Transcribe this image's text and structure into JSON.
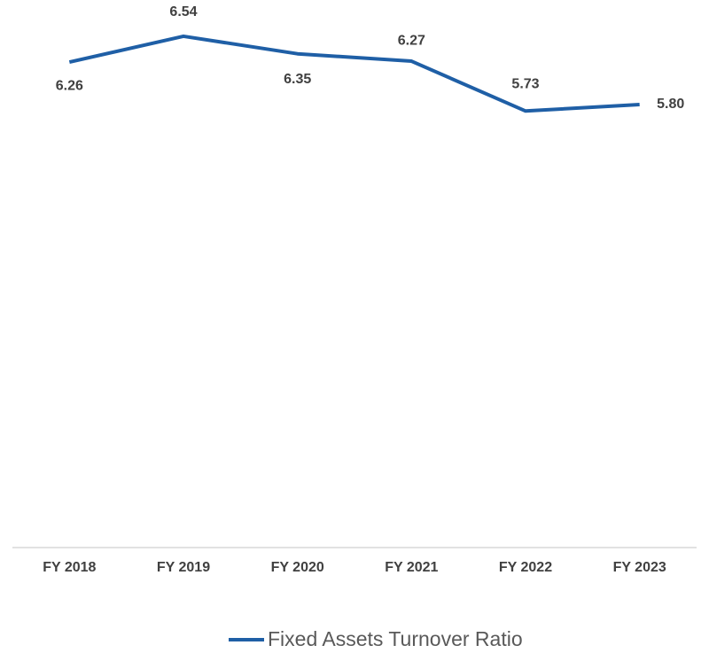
{
  "chart_data": {
    "type": "line",
    "categories": [
      "FY 2018",
      "FY 2019",
      "FY 2020",
      "FY 2021",
      "FY 2022",
      "FY 2023"
    ],
    "series": [
      {
        "name": "Fixed Assets Turnover Ratio",
        "color": "#1f5fa6",
        "values": [
          6.26,
          6.54,
          6.35,
          6.27,
          5.73,
          5.8
        ],
        "value_labels": [
          "6.26",
          "6.54",
          "6.35",
          "6.27",
          "5.73",
          "5.80"
        ]
      }
    ],
    "ylim": [
      1,
      7
    ],
    "grid": false,
    "legend": "bottom"
  }
}
